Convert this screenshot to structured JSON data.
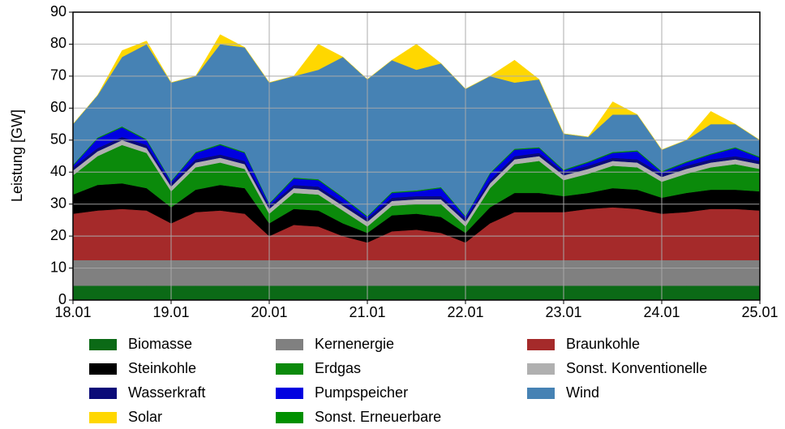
{
  "chart_data": {
    "type": "stacked_area",
    "y_label": "Leistung [GW]",
    "x": [
      18,
      18.25,
      18.5,
      18.75,
      19,
      19.25,
      19.5,
      19.75,
      20,
      20.25,
      20.5,
      20.75,
      21,
      21.25,
      21.5,
      21.75,
      22,
      22.25,
      22.5,
      22.75,
      23,
      23.25,
      23.5,
      23.75,
      24,
      24.25,
      24.5,
      24.75,
      25
    ],
    "xlim": [
      18,
      25
    ],
    "xticks": [
      {
        "value": 18,
        "label": "18.01"
      },
      {
        "value": 19,
        "label": "19.01"
      },
      {
        "value": 20,
        "label": "20.01"
      },
      {
        "value": 21,
        "label": "21.01"
      },
      {
        "value": 22,
        "label": "22.01"
      },
      {
        "value": 23,
        "label": "23.01"
      },
      {
        "value": 24,
        "label": "24.01"
      },
      {
        "value": 25,
        "label": "25.01"
      }
    ],
    "ylim": [
      0,
      90
    ],
    "yticks": [
      0,
      10,
      20,
      30,
      40,
      50,
      60,
      70,
      80,
      90
    ],
    "grid": true,
    "series": [
      {
        "name": "Biomasse",
        "color": "#0b6a16",
        "values": [
          4.5,
          4.5,
          4.5,
          4.5,
          4.5,
          4.5,
          4.5,
          4.5,
          4.5,
          4.5,
          4.5,
          4.5,
          4.5,
          4.5,
          4.5,
          4.5,
          4.5,
          4.5,
          4.5,
          4.5,
          4.5,
          4.5,
          4.5,
          4.5,
          4.5,
          4.5,
          4.5,
          4.5,
          4.5
        ]
      },
      {
        "name": "Kernenergie",
        "color": "#808080",
        "values": [
          8,
          8,
          8,
          8,
          8,
          8,
          8,
          8,
          8,
          8,
          8,
          8,
          8,
          8,
          8,
          8,
          8,
          8,
          8,
          8,
          8,
          8,
          8,
          8,
          8,
          8,
          8,
          8,
          8
        ]
      },
      {
        "name": "Braunkohle",
        "color": "#a52a2a",
        "values": [
          14.5,
          15.5,
          16,
          15.5,
          11.5,
          15,
          15.5,
          14.5,
          7.5,
          11,
          10.5,
          7.5,
          5.5,
          9,
          9.5,
          8.5,
          5.5,
          11.5,
          15,
          15,
          15,
          16,
          16.5,
          16,
          14.5,
          15,
          16,
          16,
          15.5
        ]
      },
      {
        "name": "Steinkohle",
        "color": "#000000",
        "values": [
          6,
          8,
          8,
          7,
          5,
          7,
          8,
          8,
          4,
          5,
          5,
          4,
          3,
          5,
          5,
          5,
          3,
          5,
          6,
          6,
          5,
          5,
          6,
          6,
          5,
          6,
          6,
          6,
          6
        ]
      },
      {
        "name": "Erdgas",
        "color": "#0b8a0b",
        "values": [
          6,
          9,
          12,
          11,
          5,
          7,
          7,
          6,
          3,
          5,
          5,
          4,
          2,
          3,
          3,
          4,
          2,
          6,
          9,
          10,
          5,
          6,
          7,
          7,
          5,
          6,
          7,
          8,
          7
        ]
      },
      {
        "name": "Sonst. Konventionelle",
        "color": "#b0b0b0",
        "values": [
          1.5,
          1.5,
          1.5,
          1.5,
          1.5,
          1.5,
          1.5,
          1.5,
          1.5,
          1.5,
          1.5,
          1.5,
          1.5,
          1.5,
          1.5,
          1.5,
          1.5,
          1.5,
          1.5,
          1.5,
          1.5,
          1.5,
          1.5,
          1.5,
          1.5,
          1.5,
          1.5,
          1.5,
          1.5
        ]
      },
      {
        "name": "Wasserkraft",
        "color": "#0a0a78",
        "values": [
          1,
          1,
          1,
          1,
          1,
          1,
          1,
          1,
          1,
          1,
          1,
          1,
          1,
          1,
          1,
          1,
          1,
          1,
          1,
          1,
          1,
          1,
          1,
          1,
          1,
          1,
          1,
          1,
          1
        ]
      },
      {
        "name": "Pumpspeicher",
        "color": "#0000e0",
        "values": [
          0.5,
          3,
          3,
          1.5,
          0.5,
          2,
          3,
          2.5,
          0.5,
          2,
          2,
          1.5,
          0.5,
          1.5,
          1.5,
          2.5,
          0.5,
          2,
          2,
          1.5,
          0.5,
          1,
          1.5,
          2.5,
          0.5,
          1,
          1.5,
          2.5,
          1
        ]
      },
      {
        "name": "Sonst. Erneuerbare",
        "color": "#009000",
        "values": [
          0.3,
          0.3,
          0.3,
          0.3,
          0.3,
          0.3,
          0.3,
          0.3,
          0.3,
          0.3,
          0.3,
          0.3,
          0.3,
          0.3,
          0.3,
          0.3,
          0.3,
          0.3,
          0.3,
          0.3,
          0.3,
          0.3,
          0.3,
          0.3,
          0.3,
          0.3,
          0.3,
          0.3,
          0.3
        ]
      },
      {
        "name": "Wind",
        "color": "#4682b4",
        "values": [
          12.7,
          13.2,
          21.7,
          29.7,
          30.7,
          23.7,
          31.2,
          32.7,
          37.7,
          31.7,
          34.2,
          43.7,
          42.7,
          41.2,
          37.7,
          38.7,
          39.7,
          30.2,
          20.7,
          21.2,
          11.2,
          7.7,
          11.7,
          11.2,
          6.7,
          6.7,
          9.2,
          7.2,
          5.2
        ]
      },
      {
        "name": "Solar",
        "color": "#ffd700",
        "values": [
          0,
          0,
          2,
          1,
          0,
          0,
          3,
          0,
          0,
          0,
          8,
          0,
          0,
          0,
          8,
          0,
          0,
          0,
          7,
          0,
          0,
          0,
          4,
          0,
          0,
          0,
          4,
          0,
          0
        ]
      }
    ]
  }
}
